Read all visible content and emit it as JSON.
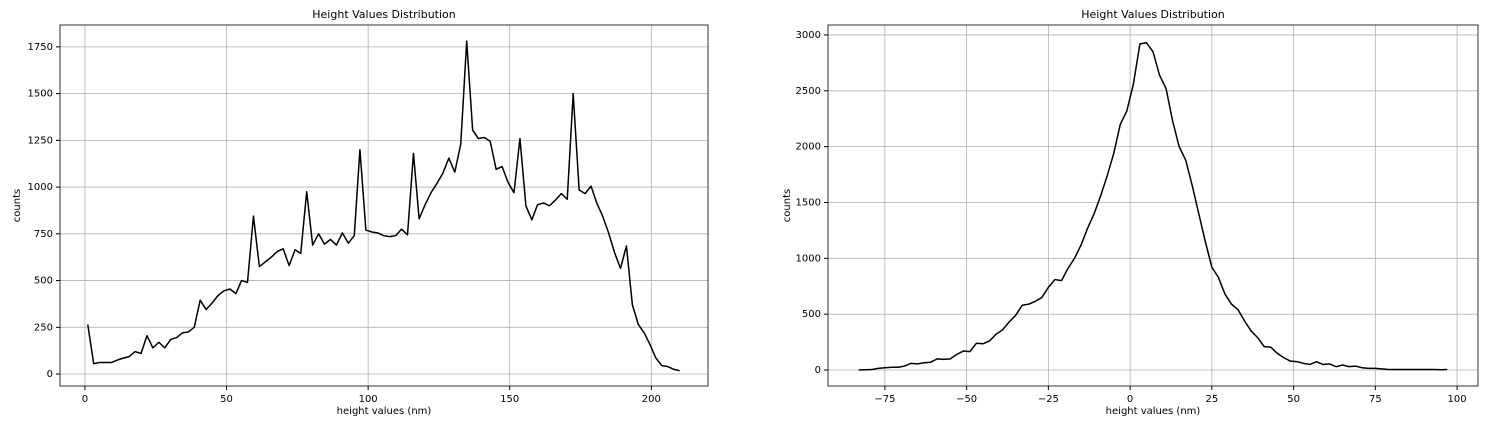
{
  "chart_data": [
    {
      "type": "line",
      "title": "Height Values Distribution",
      "x_label": "height values (nm)",
      "y_label": "counts",
      "x": [
        1,
        3.1,
        5.2,
        7.3,
        9.4,
        11.5,
        13.5,
        15.6,
        17.7,
        19.8,
        21.9,
        24,
        26.1,
        28.2,
        30.3,
        32.4,
        34.4,
        36.5,
        38.6,
        40.7,
        42.8,
        44.9,
        47,
        49.1,
        51.2,
        53.3,
        55.3,
        57.4,
        59.5,
        61.6,
        63.7,
        65.8,
        67.9,
        70,
        72.1,
        74.2,
        76.2,
        78.3,
        80.4,
        82.5,
        84.6,
        86.7,
        88.8,
        90.9,
        93,
        95.1,
        97.1,
        99.2,
        101.3,
        103.4,
        105.5,
        107.6,
        109.7,
        111.8,
        113.9,
        116,
        118,
        120.1,
        122.2,
        124.3,
        126.4,
        128.5,
        130.6,
        132.7,
        134.8,
        136.9,
        138.9,
        141,
        143.1,
        145.2,
        147.3,
        149.4,
        151.5,
        153.6,
        155.7,
        157.8,
        159.8,
        161.9,
        164,
        166.1,
        168.2,
        170.3,
        172.4,
        174.5,
        176.6,
        178.7,
        180.7,
        182.8,
        184.9,
        187,
        189.1,
        191.2,
        193.3,
        195.4,
        197.5,
        199.6,
        201.6,
        203.7,
        205.8,
        207.9,
        210
      ],
      "series": [
        {
          "color": "#000000",
          "values": [
            265,
            55,
            62,
            62,
            62,
            75,
            85,
            93,
            120,
            110,
            205,
            140,
            170,
            140,
            185,
            195,
            220,
            225,
            250,
            395,
            345,
            380,
            420,
            445,
            455,
            430,
            500,
            490,
            845,
            575,
            600,
            625,
            655,
            670,
            580,
            665,
            645,
            975,
            690,
            750,
            695,
            720,
            690,
            755,
            700,
            740,
            1200,
            770,
            760,
            755,
            740,
            735,
            740,
            775,
            745,
            1180,
            830,
            905,
            970,
            1020,
            1075,
            1155,
            1080,
            1230,
            1780,
            1305,
            1260,
            1265,
            1245,
            1095,
            1110,
            1025,
            970,
            1260,
            900,
            825,
            905,
            915,
            900,
            930,
            965,
            935,
            1500,
            985,
            965,
            1005,
            915,
            845,
            755,
            650,
            565,
            685,
            370,
            265,
            220,
            155,
            85,
            45,
            40,
            25,
            18
          ]
        }
      ],
      "xlim": [
        -8.8,
        220
      ],
      "ylim": [
        -64,
        1867
      ],
      "xticks": [
        0,
        50,
        100,
        150,
        200
      ],
      "yticks": [
        0,
        250,
        500,
        750,
        1000,
        1250,
        1500,
        1750
      ],
      "grid": true
    },
    {
      "type": "line",
      "title": "Height Values Distribution",
      "x_label": "height values (nm)",
      "y_label": "counts",
      "x": [
        -83,
        -81,
        -79,
        -77,
        -75,
        -73,
        -71,
        -69,
        -67,
        -65,
        -63,
        -61,
        -59,
        -57,
        -55,
        -53,
        -51,
        -49,
        -47,
        -45,
        -43,
        -41,
        -39,
        -37,
        -35,
        -33,
        -31,
        -29,
        -27,
        -25,
        -23,
        -21,
        -19,
        -17,
        -15,
        -13,
        -11,
        -9,
        -7,
        -5,
        -3,
        -1,
        1,
        3,
        5,
        7,
        9,
        11,
        13,
        15,
        17,
        19,
        21,
        23,
        25,
        27,
        29,
        31,
        33,
        35,
        37,
        39,
        41,
        43,
        45,
        47,
        49,
        51,
        53,
        55,
        57,
        59,
        61,
        63,
        65,
        67,
        69,
        71,
        73,
        75,
        77,
        79,
        81,
        83,
        85,
        87,
        89,
        91,
        93,
        95,
        97
      ],
      "series": [
        {
          "color": "#000000",
          "values": [
            0,
            3,
            5,
            15,
            20,
            25,
            25,
            35,
            60,
            55,
            65,
            70,
            100,
            95,
            100,
            140,
            170,
            165,
            240,
            235,
            260,
            320,
            360,
            430,
            490,
            580,
            590,
            615,
            650,
            740,
            810,
            800,
            910,
            1000,
            1120,
            1270,
            1400,
            1560,
            1740,
            1940,
            2200,
            2320,
            2560,
            2920,
            2930,
            2850,
            2640,
            2520,
            2230,
            2000,
            1880,
            1650,
            1400,
            1150,
            920,
            830,
            680,
            590,
            540,
            440,
            350,
            290,
            210,
            205,
            150,
            110,
            80,
            75,
            60,
            50,
            75,
            50,
            55,
            30,
            45,
            30,
            35,
            20,
            15,
            15,
            10,
            5,
            5,
            5,
            5,
            5,
            5,
            5,
            5,
            2,
            5
          ]
        }
      ],
      "xlim": [
        -92.4,
        106.4
      ],
      "ylim": [
        -143,
        3089
      ],
      "xticks": [
        {
          "value": -75,
          "label": "−75"
        },
        {
          "value": -50,
          "label": "−50"
        },
        {
          "value": -25,
          "label": "−25"
        },
        0,
        25,
        50,
        75,
        100
      ],
      "yticks": [
        0,
        500,
        1000,
        1500,
        2000,
        2500,
        3000
      ],
      "grid": true
    }
  ]
}
